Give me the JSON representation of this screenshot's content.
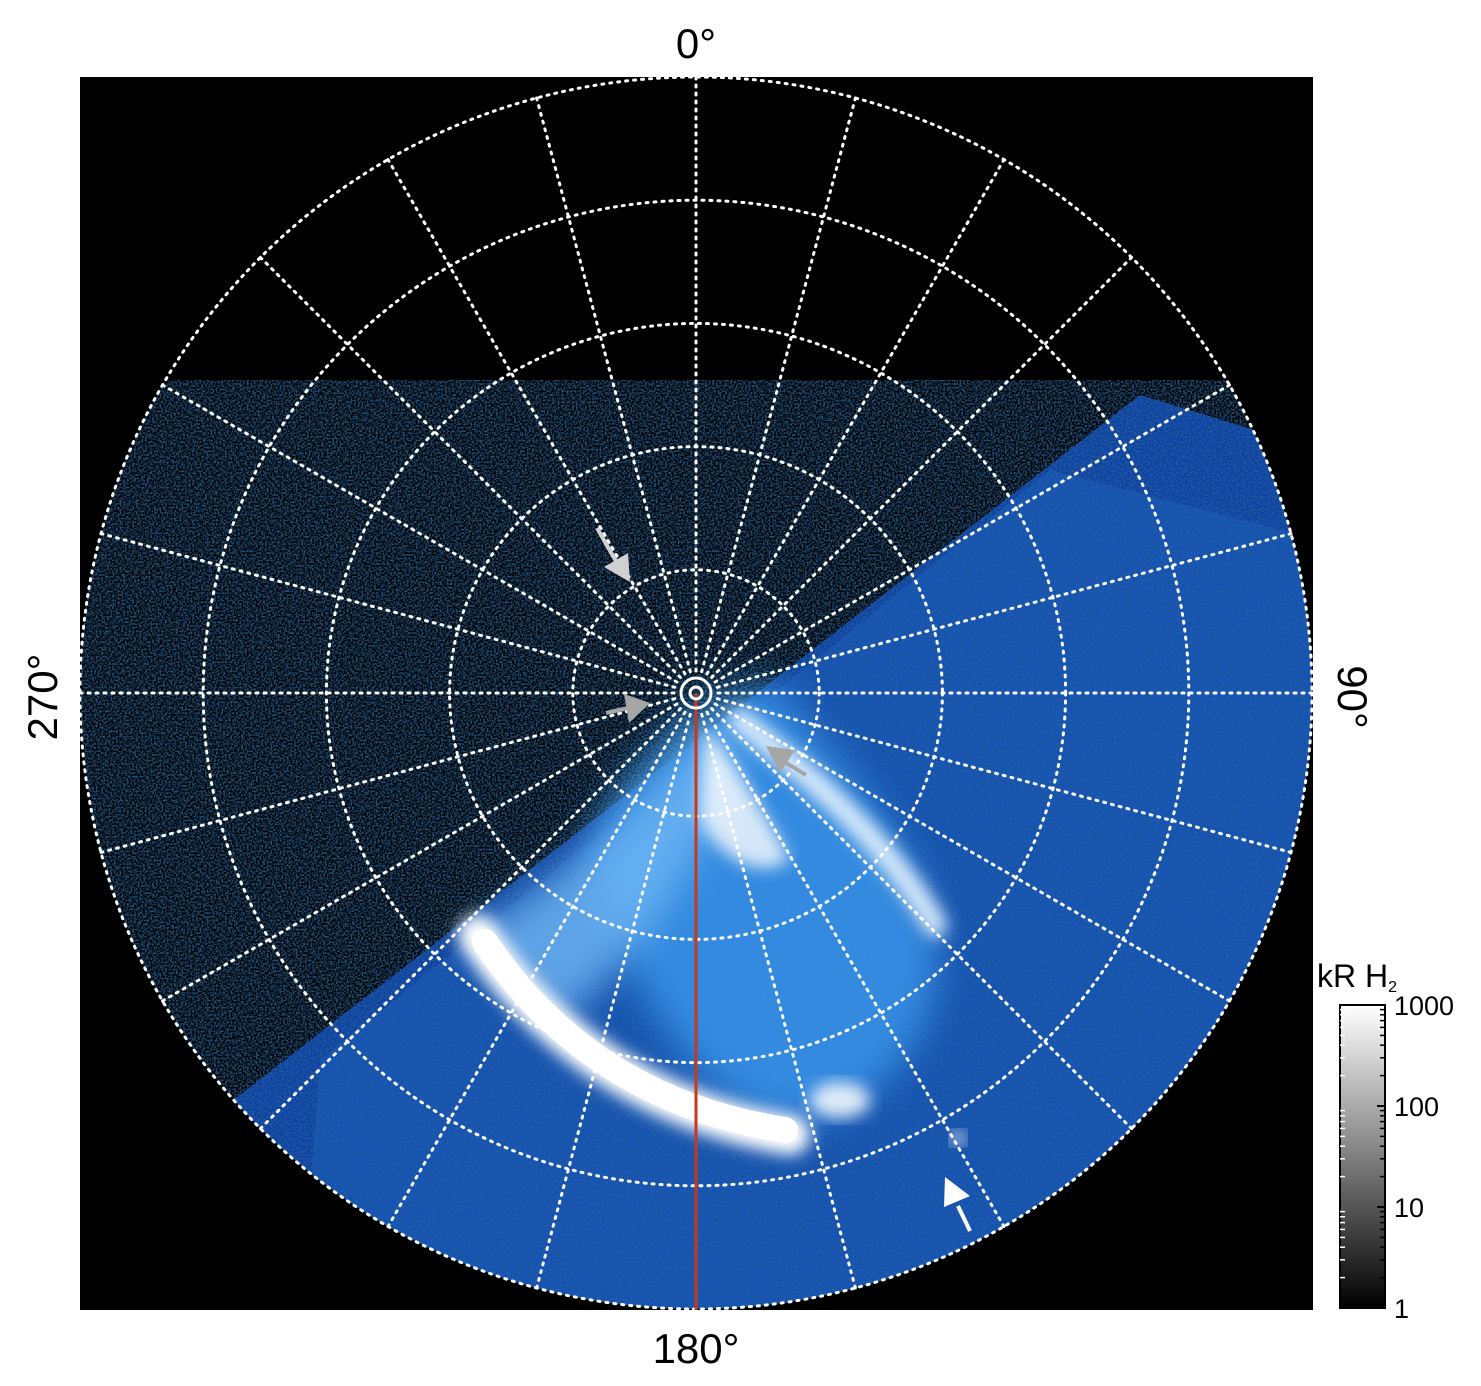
{
  "chart_data": {
    "type": "heatmap",
    "projection": "polar",
    "angle_labels": {
      "top": "0°",
      "right": "90°",
      "bottom": "180°",
      "left": "270°"
    },
    "meridians_every_deg": 15,
    "parallel_rings": 5,
    "grid": "dotted white",
    "colorbar": {
      "title_main": "kR H",
      "title_sub": "2",
      "scale": "log",
      "range": [
        1,
        1000
      ],
      "tick_labels": [
        "1000",
        "100",
        "10",
        "1"
      ],
      "tick_values": [
        1000,
        100,
        10,
        1
      ],
      "placement": "bottom-right"
    },
    "reference_line": {
      "angle_deg": 180,
      "color": "#c8381a"
    },
    "arrows": [
      {
        "color": "#d0d0d0"
      },
      {
        "color": "#a6a6a6"
      },
      {
        "color": "#a6a6a6"
      },
      {
        "color": "#ffffff"
      }
    ],
    "colors": {
      "background": "#000000",
      "grid": "#ffffff",
      "emission_low": "#0a3a9c",
      "emission_mid": "#1f7fe6",
      "emission_high": "#ffffff"
    }
  }
}
